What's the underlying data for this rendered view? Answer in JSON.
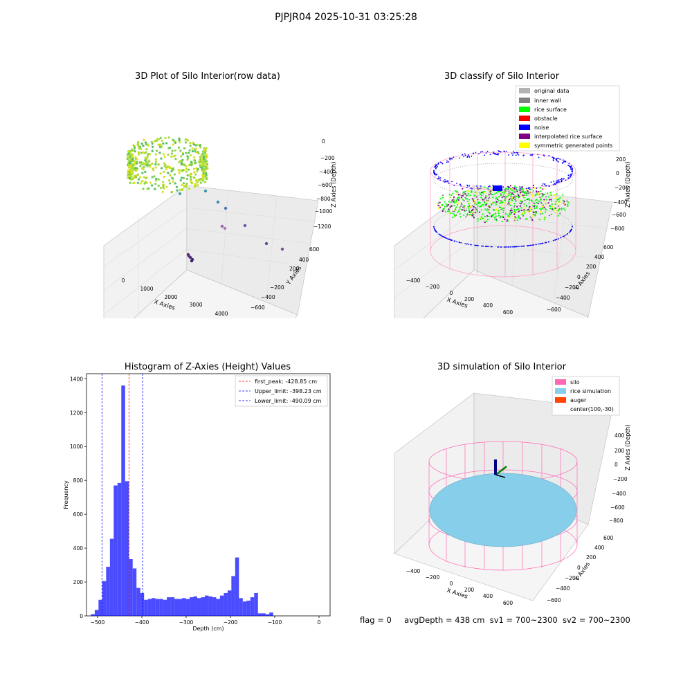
{
  "suptitle": "PJPJR04 2025-10-31 03:25:28",
  "panels": {
    "raw": {
      "title": "3D Plot of Silo Interior(row data)",
      "xlabel": "X Axies",
      "ylabel": "Y Axies",
      "zlabel": "Z Axies (Depth)",
      "xticks": [
        "0",
        "1000",
        "2000",
        "3000",
        "4000"
      ],
      "yticks": [
        "600",
        "400",
        "200",
        "−200",
        "−400",
        "−600"
      ],
      "zticks": [
        "0",
        "−200",
        "−400",
        "−600",
        "−800",
        "−1000",
        "−1200"
      ]
    },
    "classify": {
      "title": "3D classify of Silo Interior",
      "xlabel": "X Axies",
      "ylabel": "Y Axies",
      "zlabel": "Z Axies (Depth)",
      "xticks": [
        "−400",
        "−200",
        "0",
        "200",
        "400",
        "600"
      ],
      "yticks": [
        "600",
        "400",
        "200",
        "0",
        "−200",
        "−400",
        "−600"
      ],
      "zticks": [
        "200",
        "0",
        "−200",
        "−400",
        "−600",
        "−800"
      ],
      "legend": [
        {
          "label": "original data",
          "color": "#b3b3b3"
        },
        {
          "label": "inner wall",
          "color": "#808080"
        },
        {
          "label": "rice surface",
          "color": "#00ff00"
        },
        {
          "label": "obstacle",
          "color": "#ff0000"
        },
        {
          "label": "noise",
          "color": "#0000ff"
        },
        {
          "label": "interpolated rice surface",
          "color": "#800080"
        },
        {
          "label": "symmetric generated points",
          "color": "#ffff00"
        }
      ]
    },
    "sim": {
      "title": "3D simulation of Silo Interior",
      "xlabel": "X Axies",
      "ylabel": "Y Axies",
      "zlabel": "Z Axies (Depth)",
      "xticks": [
        "−400",
        "−200",
        "0",
        "200",
        "400",
        "600"
      ],
      "yticks": [
        "600",
        "400",
        "200",
        "0",
        "−200",
        "−400",
        "−600"
      ],
      "zticks": [
        "400",
        "200",
        "0",
        "−200",
        "−400",
        "−600",
        "−800"
      ],
      "legend": [
        {
          "label": "silo",
          "color": "#ff69b4"
        },
        {
          "label": "rice simulation",
          "color": "#87ceeb"
        },
        {
          "label": "auger",
          "color": "#ff4500"
        },
        {
          "label": "center(100,-30)",
          "color": ""
        }
      ]
    }
  },
  "chart_data": {
    "type": "bar",
    "title": "Histogram of Z-Axies (Height) Values",
    "xlabel": "Depth (cm)",
    "ylabel": "Frequency",
    "xlim": [
      -525,
      25
    ],
    "ylim": [
      0,
      1430
    ],
    "xticks": [
      -500,
      -400,
      -300,
      -200,
      -100,
      0
    ],
    "yticks": [
      0,
      200,
      400,
      600,
      800,
      1000,
      1200,
      1400
    ],
    "bar_color": "#0000ff",
    "bin_width": 8.57,
    "bins_start": [
      -515,
      -506.4,
      -497.9,
      -489.3,
      -480.7,
      -472.1,
      -463.6,
      -455,
      -446.4,
      -437.9,
      -429.3,
      -420.7,
      -412.1,
      -403.6,
      -395,
      -386.4,
      -377.9,
      -369.3,
      -360.7,
      -352.1,
      -343.6,
      -335,
      -326.4,
      -317.9,
      -309.3,
      -300.7,
      -292.1,
      -283.6,
      -275,
      -266.4,
      -257.9,
      -249.3,
      -240.7,
      -232.1,
      -223.6,
      -215,
      -206.4,
      -197.9,
      -189.3,
      -180.7,
      -172.1,
      -163.6,
      -155,
      -146.4,
      -137.9,
      -129.3,
      -120.7,
      -112.1,
      -103.6,
      -95,
      -86.4,
      -77.9,
      -69.3,
      -60.7,
      -52.1,
      -43.6,
      -35,
      -26.4,
      -17.9,
      -9.3
    ],
    "values": [
      10,
      35,
      95,
      205,
      290,
      455,
      770,
      785,
      1360,
      795,
      335,
      280,
      165,
      135,
      95,
      100,
      105,
      100,
      100,
      95,
      110,
      110,
      100,
      100,
      105,
      100,
      110,
      115,
      105,
      110,
      120,
      115,
      110,
      100,
      120,
      135,
      150,
      235,
      345,
      105,
      85,
      90,
      110,
      135,
      15,
      15,
      10,
      20,
      0,
      0,
      0,
      0,
      0,
      0,
      0,
      0,
      0,
      0,
      0,
      0
    ],
    "vlines": [
      {
        "x": -428.85,
        "color": "#ff0000",
        "label": "first_peak: -428.85 cm"
      },
      {
        "x": -398.23,
        "color": "#0000ff",
        "label": "Upper_limit: -398.23 cm"
      },
      {
        "x": -490.09,
        "color": "#0000ff",
        "label": "Lower_limit: -490.09 cm"
      }
    ],
    "legend_position": "top-right"
  },
  "footer": {
    "flag": "flag = 0",
    "avg": "avgDepth = 438 cm",
    "sv1": "sv1 = 700~2300",
    "sv2": "sv2 = 700~2300"
  }
}
